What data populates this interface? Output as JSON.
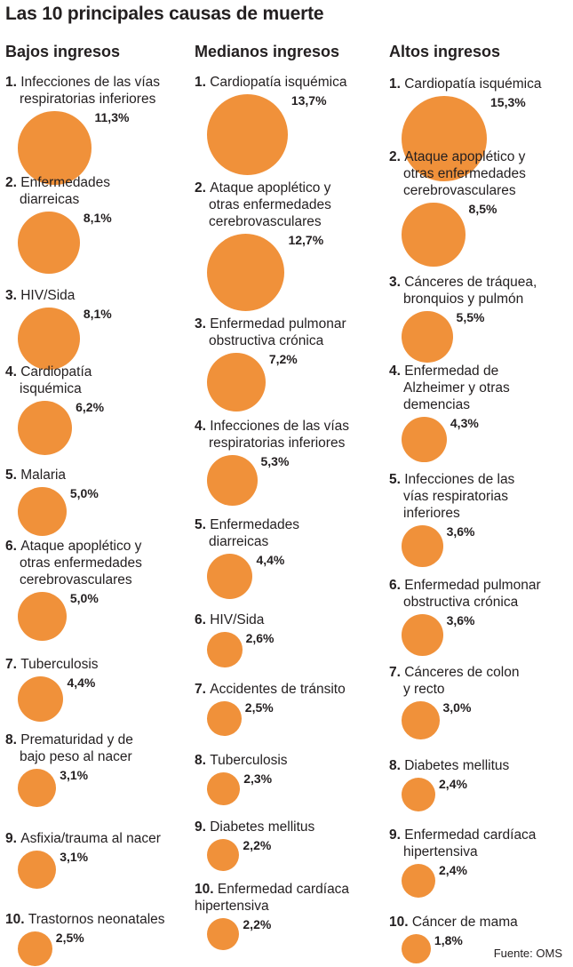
{
  "title": "Las 10 principales causas de muerte",
  "source": "Fuente: OMS",
  "colors": {
    "bubble": "#f0913a",
    "text": "#231f20"
  },
  "chart_data": {
    "type": "bubble-list",
    "title": "Las 10 principales causas de muerte",
    "unit": "%",
    "columns": [
      {
        "name": "Bajos ingresos",
        "items": [
          {
            "rank": "1.",
            "label": [
              "Infecciones de las vías",
              "respiratorias inferiores"
            ],
            "value": 11.3,
            "pct": "11,3%"
          },
          {
            "rank": "2.",
            "label": [
              "Enfermedades",
              "diarreicas"
            ],
            "value": 8.1,
            "pct": "8,1%"
          },
          {
            "rank": "3.",
            "label": [
              "HIV/Sida"
            ],
            "value": 8.1,
            "pct": "8,1%"
          },
          {
            "rank": "4.",
            "label": [
              "Cardiopatía",
              "isquémica"
            ],
            "value": 6.2,
            "pct": "6,2%"
          },
          {
            "rank": "5.",
            "label": [
              "Malaria"
            ],
            "value": 5.0,
            "pct": "5,0%"
          },
          {
            "rank": "6.",
            "label": [
              "Ataque apoplético y",
              "otras enfermedades",
              "cerebrovasculares"
            ],
            "value": 5.0,
            "pct": "5,0%"
          },
          {
            "rank": "7.",
            "label": [
              "Tuberculosis"
            ],
            "value": 4.4,
            "pct": "4,4%"
          },
          {
            "rank": "8.",
            "label": [
              "Prematuridad y de",
              "bajo peso al nacer"
            ],
            "value": 3.1,
            "pct": "3,1%"
          },
          {
            "rank": "9.",
            "label": [
              "Asfixia/trauma al nacer"
            ],
            "value": 3.1,
            "pct": "3,1%"
          },
          {
            "rank": "10.",
            "label": [
              "Trastornos neonatales"
            ],
            "value": 2.5,
            "pct": "2,5%"
          }
        ]
      },
      {
        "name": "Medianos ingresos",
        "items": [
          {
            "rank": "1.",
            "label": [
              "Cardiopatía isquémica"
            ],
            "value": 13.7,
            "pct": "13,7%"
          },
          {
            "rank": "2.",
            "label": [
              "Ataque apoplético y",
              "otras enfermedades",
              "cerebrovasculares"
            ],
            "value": 12.7,
            "pct": "12,7%"
          },
          {
            "rank": "3.",
            "label": [
              "Enfermedad pulmonar",
              "obstructiva crónica"
            ],
            "value": 7.2,
            "pct": "7,2%"
          },
          {
            "rank": "4.",
            "label": [
              "Infecciones de las vías",
              "respiratorias inferiores"
            ],
            "value": 5.3,
            "pct": "5,3%"
          },
          {
            "rank": "5.",
            "label": [
              "Enfermedades",
              "diarreicas"
            ],
            "value": 4.4,
            "pct": "4,4%"
          },
          {
            "rank": "6.",
            "label": [
              "HIV/Sida"
            ],
            "value": 2.6,
            "pct": "2,6%"
          },
          {
            "rank": "7.",
            "label": [
              "Accidentes de tránsito"
            ],
            "value": 2.5,
            "pct": "2,5%"
          },
          {
            "rank": "8.",
            "label": [
              "Tuberculosis"
            ],
            "value": 2.3,
            "pct": "2,3%"
          },
          {
            "rank": "9.",
            "label": [
              "Diabetes mellitus"
            ],
            "value": 2.2,
            "pct": "2,2%"
          },
          {
            "rank": "10.",
            "label": [
              "Enfermedad cardíaca",
              "hipertensiva"
            ],
            "value": 2.2,
            "pct": "2,2%"
          }
        ]
      },
      {
        "name": "Altos ingresos",
        "items": [
          {
            "rank": "1.",
            "label": [
              "Cardiopatía isquémica"
            ],
            "value": 15.3,
            "pct": "15,3%"
          },
          {
            "rank": "2.",
            "label": [
              "Ataque apoplético y",
              "otras enfermedades",
              "cerebrovasculares"
            ],
            "value": 8.5,
            "pct": "8,5%"
          },
          {
            "rank": "3.",
            "label": [
              "Cánceres de tráquea,",
              "bronquios y pulmón"
            ],
            "value": 5.5,
            "pct": "5,5%"
          },
          {
            "rank": "4.",
            "label": [
              "Enfermedad de",
              "Alzheimer y otras",
              "demencias"
            ],
            "value": 4.3,
            "pct": "4,3%"
          },
          {
            "rank": "5.",
            "label": [
              "Infecciones de las",
              "vías respiratorias",
              "inferiores"
            ],
            "value": 3.6,
            "pct": "3,6%"
          },
          {
            "rank": "6.",
            "label": [
              "Enfermedad pulmonar",
              "obstructiva crónica"
            ],
            "value": 3.6,
            "pct": "3,6%"
          },
          {
            "rank": "7.",
            "label": [
              "Cánceres de colon",
              "y recto"
            ],
            "value": 3.0,
            "pct": "3,0%"
          },
          {
            "rank": "8.",
            "label": [
              "Diabetes mellitus"
            ],
            "value": 2.4,
            "pct": "2,4%"
          },
          {
            "rank": "9.",
            "label": [
              "Enfermedad cardíaca",
              "hipertensiva"
            ],
            "value": 2.4,
            "pct": "2,4%"
          },
          {
            "rank": "10.",
            "label": [
              "Cáncer de mama"
            ],
            "value": 1.8,
            "pct": "1,8%"
          }
        ]
      }
    ]
  }
}
